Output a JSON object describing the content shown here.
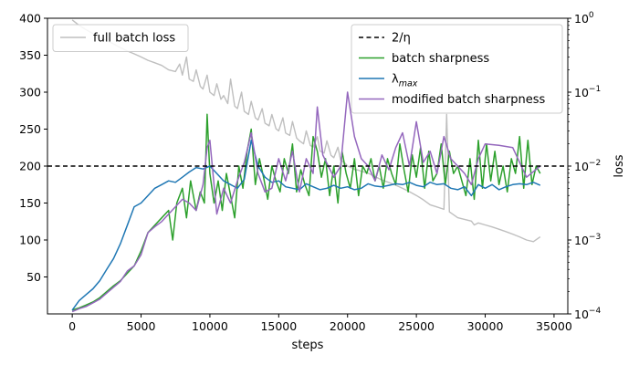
{
  "chart_data": {
    "type": "line",
    "xlabel": "steps",
    "ylabel": "",
    "y2label": "loss",
    "xlim": [
      -1800,
      36000
    ],
    "ylim": [
      0,
      400
    ],
    "y2lim": [
      0.0001,
      1
    ],
    "y2scale": "log",
    "grid": false,
    "x_ticks": [
      0,
      5000,
      10000,
      15000,
      20000,
      25000,
      30000,
      35000
    ],
    "y_ticks": [
      50,
      100,
      150,
      200,
      250,
      300,
      350,
      400
    ],
    "y2_ticks": [
      {
        "value": 0.0001,
        "base": "10",
        "exp": "−4"
      },
      {
        "value": 0.001,
        "base": "10",
        "exp": "−3"
      },
      {
        "value": 0.01,
        "base": "10",
        "exp": "−2"
      },
      {
        "value": 0.1,
        "base": "10",
        "exp": "−1"
      },
      {
        "value": 1,
        "base": "10",
        "exp": "0"
      }
    ],
    "legend_left": {
      "placement": "top-left",
      "entries": [
        "full batch loss"
      ]
    },
    "legend_right": {
      "placement": "top-right",
      "entries": [
        "2/η",
        "batch sharpness",
        "λ",
        "modified batch sharpness"
      ]
    },
    "lambda_subscript": "max",
    "threshold": {
      "name": "2/η",
      "value": 200,
      "color": "#000000"
    },
    "series": [
      {
        "name": "full batch loss",
        "axis": "right",
        "color": "#bfbfbf",
        "x": [
          0,
          500,
          1000,
          1500,
          2000,
          2500,
          3000,
          3500,
          4000,
          4500,
          5000,
          5500,
          6000,
          6500,
          7000,
          7500,
          7800,
          8000,
          8300,
          8500,
          8800,
          9000,
          9300,
          9500,
          9800,
          10000,
          10300,
          10500,
          10800,
          11000,
          11300,
          11500,
          11800,
          12000,
          12300,
          12500,
          12800,
          13000,
          13300,
          13500,
          13800,
          14000,
          14300,
          14500,
          14800,
          15000,
          15300,
          15500,
          15800,
          16000,
          16300,
          16500,
          16800,
          17000,
          17300,
          17500,
          17800,
          18000,
          18300,
          18500,
          18800,
          19000,
          19300,
          19500,
          19800,
          20000,
          20300,
          20500,
          20800,
          21000,
          21500,
          22000,
          22500,
          23000,
          23500,
          24000,
          24500,
          25000,
          25500,
          26000,
          26500,
          27000,
          27200,
          27400,
          27700,
          28000,
          28500,
          29000,
          29200,
          29500,
          30000,
          30500,
          31000,
          31500,
          32000,
          32500,
          33000,
          33500,
          34000
        ],
        "values": [
          0.95,
          0.8,
          0.7,
          0.62,
          0.55,
          0.5,
          0.45,
          0.4,
          0.36,
          0.33,
          0.3,
          0.27,
          0.25,
          0.23,
          0.2,
          0.19,
          0.24,
          0.17,
          0.3,
          0.15,
          0.14,
          0.2,
          0.12,
          0.11,
          0.17,
          0.1,
          0.09,
          0.13,
          0.08,
          0.09,
          0.07,
          0.15,
          0.065,
          0.06,
          0.1,
          0.055,
          0.05,
          0.075,
          0.045,
          0.042,
          0.06,
          0.038,
          0.035,
          0.05,
          0.032,
          0.03,
          0.045,
          0.028,
          0.026,
          0.04,
          0.024,
          0.022,
          0.02,
          0.03,
          0.019,
          0.018,
          0.025,
          0.016,
          0.015,
          0.022,
          0.014,
          0.013,
          0.018,
          0.012,
          0.011,
          0.01,
          0.0095,
          0.009,
          0.0088,
          0.0085,
          0.008,
          0.0072,
          0.0065,
          0.006,
          0.0055,
          0.005,
          0.0045,
          0.004,
          0.0035,
          0.003,
          0.0028,
          0.0026,
          0.05,
          0.0024,
          0.0022,
          0.002,
          0.0019,
          0.0018,
          0.0016,
          0.0017,
          0.0016,
          0.0015,
          0.0014,
          0.0013,
          0.0012,
          0.0011,
          0.001,
          0.00095,
          0.0011
        ]
      },
      {
        "name": "batch sharpness",
        "axis": "left",
        "color": "#2ca02c",
        "x": [
          0,
          500,
          1000,
          1500,
          2000,
          2500,
          3000,
          3500,
          4000,
          4500,
          5000,
          5500,
          6000,
          6500,
          7000,
          7300,
          7600,
          8000,
          8300,
          8600,
          9000,
          9300,
          9600,
          9800,
          10000,
          10300,
          10600,
          10900,
          11200,
          11500,
          11800,
          12100,
          12400,
          12700,
          13000,
          13300,
          13600,
          13900,
          14200,
          14500,
          14800,
          15100,
          15400,
          15700,
          16000,
          16300,
          16600,
          16900,
          17200,
          17500,
          17800,
          18100,
          18400,
          18700,
          19000,
          19300,
          19600,
          19900,
          20200,
          20500,
          20800,
          21100,
          21400,
          21700,
          22000,
          22300,
          22600,
          22900,
          23200,
          23500,
          23800,
          24100,
          24400,
          24700,
          25000,
          25300,
          25600,
          25900,
          26200,
          26500,
          26800,
          27100,
          27400,
          27700,
          28000,
          28300,
          28600,
          28900,
          29200,
          29500,
          29800,
          30100,
          30400,
          30700,
          31000,
          31300,
          31600,
          31900,
          32200,
          32500,
          32800,
          33100,
          33400,
          33700,
          34000
        ],
        "values": [
          5,
          8,
          12,
          16,
          22,
          30,
          38,
          45,
          55,
          65,
          85,
          110,
          120,
          130,
          140,
          100,
          150,
          170,
          130,
          180,
          140,
          165,
          150,
          270,
          190,
          150,
          180,
          140,
          190,
          160,
          130,
          200,
          170,
          220,
          250,
          175,
          210,
          185,
          155,
          200,
          180,
          165,
          210,
          190,
          230,
          165,
          195,
          175,
          160,
          240,
          220,
          185,
          210,
          160,
          200,
          150,
          220,
          190,
          170,
          210,
          160,
          200,
          190,
          210,
          180,
          200,
          170,
          210,
          190,
          175,
          230,
          195,
          165,
          215,
          185,
          225,
          170,
          220,
          180,
          190,
          230,
          175,
          220,
          190,
          200,
          180,
          160,
          210,
          155,
          235,
          170,
          230,
          180,
          220,
          175,
          200,
          165,
          210,
          190,
          240,
          170,
          235,
          175,
          200,
          190
        ]
      },
      {
        "name": "λ",
        "axis": "left",
        "color": "#1f77b4",
        "x": [
          0,
          500,
          1000,
          1500,
          2000,
          2500,
          3000,
          3500,
          4000,
          4500,
          5000,
          5500,
          6000,
          6500,
          7000,
          7500,
          8000,
          8500,
          9000,
          9500,
          10000,
          10500,
          11000,
          11500,
          12000,
          12500,
          13000,
          13500,
          14000,
          14500,
          15000,
          15500,
          16000,
          16500,
          17000,
          17500,
          18000,
          18500,
          19000,
          19500,
          20000,
          20500,
          21000,
          21500,
          22000,
          22500,
          23000,
          23500,
          24000,
          24500,
          25000,
          25500,
          26000,
          26500,
          27000,
          27500,
          28000,
          28500,
          29000,
          29500,
          30000,
          30500,
          31000,
          31500,
          32000,
          32500,
          33000,
          33500,
          34000
        ],
        "values": [
          5,
          18,
          26,
          34,
          45,
          60,
          75,
          95,
          120,
          145,
          150,
          160,
          170,
          175,
          180,
          178,
          185,
          192,
          198,
          196,
          200,
          190,
          180,
          175,
          170,
          182,
          235,
          200,
          185,
          178,
          180,
          172,
          170,
          168,
          176,
          172,
          168,
          170,
          174,
          170,
          172,
          168,
          170,
          176,
          173,
          172,
          174,
          176,
          175,
          178,
          174,
          172,
          178,
          175,
          176,
          170,
          168,
          172,
          160,
          175,
          170,
          175,
          168,
          172,
          175,
          176,
          175,
          178,
          174
        ]
      },
      {
        "name": "modified batch sharpness",
        "axis": "left",
        "color": "#9467bd",
        "x": [
          0,
          500,
          1000,
          1500,
          2000,
          2500,
          3000,
          3500,
          4000,
          4500,
          5000,
          5500,
          6000,
          6500,
          7000,
          7500,
          8000,
          8500,
          9000,
          9500,
          9800,
          10000,
          10500,
          11000,
          11500,
          12000,
          12500,
          13000,
          13500,
          14000,
          14500,
          15000,
          15500,
          16000,
          16500,
          17000,
          17500,
          17800,
          18200,
          18600,
          19000,
          19500,
          20000,
          20500,
          21000,
          21500,
          22000,
          22500,
          23000,
          23500,
          24000,
          24500,
          25000,
          25500,
          26000,
          26500,
          27000,
          27500,
          28000,
          28500,
          29000,
          29500,
          30000,
          31000,
          32000,
          33000,
          34000
        ],
        "values": [
          3,
          7,
          10,
          15,
          20,
          28,
          36,
          44,
          58,
          65,
          80,
          110,
          118,
          125,
          135,
          145,
          155,
          150,
          140,
          175,
          225,
          235,
          135,
          170,
          150,
          180,
          205,
          245,
          190,
          165,
          170,
          210,
          180,
          220,
          165,
          210,
          190,
          280,
          215,
          200,
          185,
          200,
          300,
          240,
          210,
          200,
          180,
          215,
          195,
          225,
          245,
          200,
          260,
          205,
          220,
          190,
          240,
          210,
          200,
          190,
          175,
          210,
          230,
          228,
          225,
          185,
          200
        ]
      }
    ]
  }
}
